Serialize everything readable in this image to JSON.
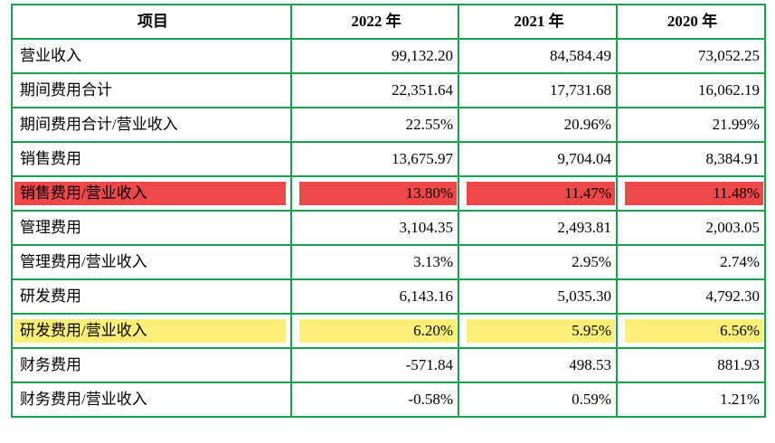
{
  "header": {
    "item": "项目",
    "y2022": "2022 年",
    "y2021": "2021 年",
    "y2020": "2020 年"
  },
  "rows": [
    {
      "label": "营业收入",
      "y2022": "99,132.20",
      "y2021": "84,584.49",
      "y2020": "73,052.25",
      "highlight": "none"
    },
    {
      "label": "期间费用合计",
      "y2022": "22,351.64",
      "y2021": "17,731.68",
      "y2020": "16,062.19",
      "highlight": "none"
    },
    {
      "label": "期间费用合计/营业收入",
      "y2022": "22.55%",
      "y2021": "20.96%",
      "y2020": "21.99%",
      "highlight": "none"
    },
    {
      "label": "销售费用",
      "y2022": "13,675.97",
      "y2021": "9,704.04",
      "y2020": "8,384.91",
      "highlight": "none"
    },
    {
      "label": "销售费用/营业收入",
      "y2022": "13.80%",
      "y2021": "11.47%",
      "y2020": "11.48%",
      "highlight": "red"
    },
    {
      "label": "管理费用",
      "y2022": "3,104.35",
      "y2021": "2,493.81",
      "y2020": "2,003.05",
      "highlight": "none"
    },
    {
      "label": "管理费用/营业收入",
      "y2022": "3.13%",
      "y2021": "2.95%",
      "y2020": "2.74%",
      "highlight": "none"
    },
    {
      "label": "研发费用",
      "y2022": "6,143.16",
      "y2021": "5,035.30",
      "y2020": "4,792.30",
      "highlight": "none"
    },
    {
      "label": "研发费用/营业收入",
      "y2022": "6.20%",
      "y2021": "5.95%",
      "y2020": "6.56%",
      "highlight": "yellow"
    },
    {
      "label": "财务费用",
      "y2022": "-571.84",
      "y2021": "498.53",
      "y2020": "881.93",
      "highlight": "none"
    },
    {
      "label": "财务费用/营业收入",
      "y2022": "-0.58%",
      "y2021": "0.59%",
      "y2020": "1.21%",
      "highlight": "none"
    }
  ],
  "colors": {
    "border": "#19a14a",
    "highlight_red": "#ef4848",
    "highlight_yellow": "#fbef7a"
  }
}
